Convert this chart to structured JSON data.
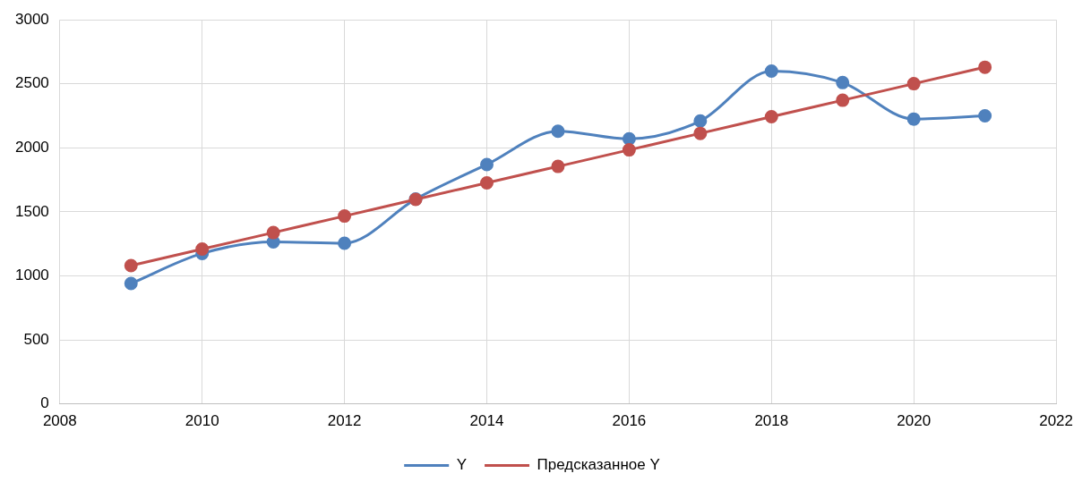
{
  "chart_data": {
    "type": "line",
    "x": [
      2009,
      2010,
      2011,
      2012,
      2013,
      2014,
      2015,
      2016,
      2017,
      2018,
      2019,
      2020,
      2021
    ],
    "series": [
      {
        "name": "Y",
        "color": "#4f81bd",
        "values": [
          940,
          1175,
          1265,
          1255,
          1600,
          1870,
          2130,
          2070,
          2210,
          2600,
          2510,
          2225,
          2250
        ]
      },
      {
        "name": "Предсказанное Y",
        "color": "#c0504d",
        "values": [
          1080,
          1209,
          1338,
          1467,
          1597,
          1726,
          1855,
          1984,
          2113,
          2243,
          2372,
          2501,
          2630
        ]
      }
    ],
    "xlim": [
      2008,
      2022
    ],
    "xticks": [
      2008,
      2010,
      2012,
      2014,
      2016,
      2018,
      2020,
      2022
    ],
    "ylim": [
      0,
      3000
    ],
    "yticks": [
      0,
      500,
      1000,
      1500,
      2000,
      2500,
      3000
    ],
    "grid": true,
    "legend": "bottom",
    "marker": "circle",
    "line_style": "solid"
  }
}
